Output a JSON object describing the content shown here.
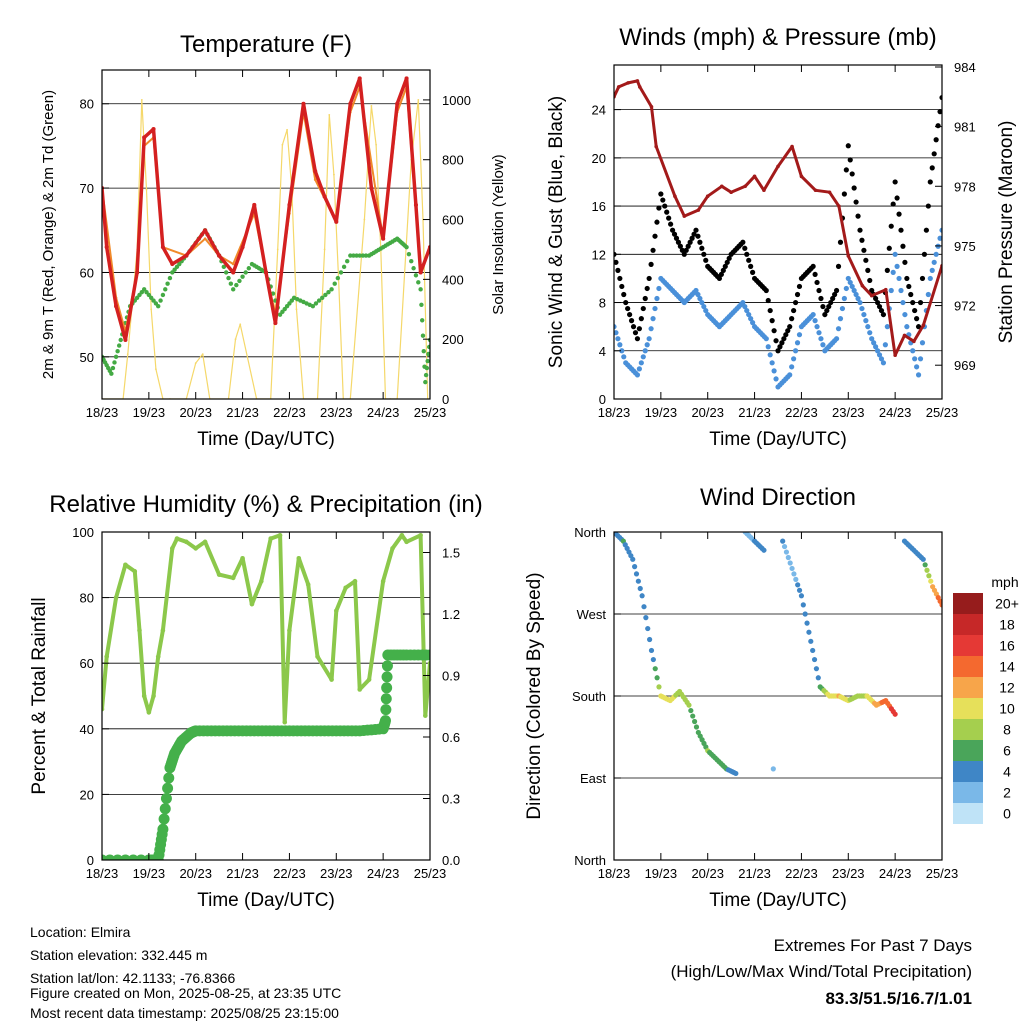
{
  "colors": {
    "temp_2m": "#d42020",
    "temp_9m": "#f08a2a",
    "dewpoint": "#44aa44",
    "solar": "#f5d86a",
    "wind": "#4a90d9",
    "gust": "#000000",
    "pressure": "#a31a1a",
    "rh": "#8cc84b",
    "precip": "#44b04a",
    "extremes": "#c62828"
  },
  "chart_data": [
    {
      "type": "line",
      "title": "Temperature (F)",
      "xlabel": "Time (Day/UTC)",
      "ylabel_left": "2m & 9m T (Red, Orange) & 2m Td (Green)",
      "ylabel_right": "Solar Insolation (Yellow)",
      "x_ticks": [
        "18/23",
        "19/23",
        "20/23",
        "21/23",
        "22/23",
        "23/23",
        "24/23",
        "25/23"
      ],
      "ylim_left": [
        45,
        84
      ],
      "yticks_left": [
        50,
        60,
        70,
        80
      ],
      "ylim_right": [
        0,
        1100
      ],
      "yticks_right": [
        0,
        200,
        400,
        600,
        800,
        1000
      ],
      "grid": true,
      "series": [
        {
          "name": "2m T",
          "axis": "left",
          "x": [
            0,
            0.1,
            0.3,
            0.5,
            0.75,
            0.9,
            1.1,
            1.3,
            1.5,
            1.8,
            2.2,
            2.5,
            2.8,
            3.0,
            3.25,
            3.5,
            3.7,
            4.0,
            4.3,
            4.55,
            4.75,
            5.0,
            5.3,
            5.5,
            5.75,
            6.0,
            6.3,
            6.5,
            6.7,
            6.8,
            7.0
          ],
          "values": [
            70,
            63,
            56,
            52,
            60,
            76,
            77,
            63,
            61,
            62,
            65,
            62,
            60,
            63,
            68,
            60,
            54,
            68,
            80,
            72,
            69,
            66,
            80,
            83,
            70,
            64,
            80,
            83,
            68,
            60,
            63
          ]
        },
        {
          "name": "9m T",
          "axis": "left",
          "x": [
            0,
            0.3,
            0.5,
            0.75,
            0.9,
            1.1,
            1.3,
            1.8,
            2.2,
            2.5,
            2.8,
            3.25,
            3.5,
            3.7,
            4.0,
            4.3,
            4.55,
            5.0,
            5.3,
            5.5,
            6.0,
            6.3,
            6.5,
            6.8,
            7.0
          ],
          "values": [
            70,
            57,
            53,
            60,
            75,
            76,
            63,
            62,
            64,
            62,
            61,
            67,
            60,
            55,
            67,
            79,
            71,
            66,
            79,
            82,
            64,
            79,
            82,
            60,
            63
          ]
        },
        {
          "name": "2m Td",
          "axis": "left",
          "x": [
            0,
            0.2,
            0.4,
            0.6,
            0.9,
            1.2,
            1.5,
            1.8,
            2.2,
            2.5,
            2.8,
            3.2,
            3.5,
            3.8,
            4.1,
            4.5,
            4.9,
            5.3,
            5.7,
            6.0,
            6.3,
            6.5,
            6.8,
            6.9,
            7.0
          ],
          "values": [
            50,
            48,
            52,
            56,
            58,
            56,
            60,
            62,
            65,
            62,
            58,
            61,
            60,
            55,
            57,
            56,
            58,
            62,
            62,
            63,
            64,
            63,
            58,
            47,
            52
          ]
        },
        {
          "name": "Solar Insolation",
          "axis": "right",
          "x": [
            0,
            0.45,
            0.55,
            0.75,
            0.85,
            0.95,
            1.05,
            1.15,
            1.3,
            1.45,
            1.8,
            2.0,
            2.15,
            2.3,
            2.7,
            2.85,
            2.95,
            3.3,
            3.6,
            3.75,
            3.85,
            3.95,
            4.05,
            4.15,
            4.3,
            4.6,
            4.75,
            4.85,
            4.95,
            5.05,
            5.15,
            5.3,
            5.6,
            5.75,
            5.85,
            5.95,
            6.05,
            6.15,
            6.3,
            6.6,
            6.75,
            6.85,
            6.95,
            7.0
          ],
          "values": [
            0,
            0,
            150,
            500,
            1000,
            700,
            300,
            100,
            0,
            0,
            0,
            120,
            150,
            0,
            0,
            200,
            250,
            0,
            0,
            500,
            850,
            900,
            700,
            300,
            0,
            0,
            500,
            950,
            750,
            400,
            0,
            0,
            600,
            980,
            850,
            500,
            0,
            0,
            0,
            800,
            1000,
            600,
            0,
            0
          ]
        }
      ]
    },
    {
      "type": "scatter",
      "title": "Winds (mph) & Pressure (mb)",
      "xlabel": "Time (Day/UTC)",
      "ylabel_left": "Sonic Wind & Gust (Blue, Black)",
      "ylabel_right": "Station Pressure (Maroon)",
      "x_ticks": [
        "18/23",
        "19/23",
        "20/23",
        "21/23",
        "22/23",
        "23/23",
        "24/23",
        "25/23"
      ],
      "ylim_left": [
        0,
        27.7
      ],
      "yticks_left": [
        0,
        4,
        8,
        12,
        16,
        20,
        24
      ],
      "ylim_right": [
        967.3,
        984.1
      ],
      "yticks_right": [
        969,
        972,
        975,
        978,
        981,
        984
      ],
      "grid": true,
      "series": [
        {
          "name": "Wind",
          "axis": "left",
          "x": [
            0,
            0.25,
            0.5,
            0.75,
            1.0,
            1.25,
            1.5,
            1.75,
            2.0,
            2.25,
            2.5,
            2.75,
            3.0,
            3.25,
            3.5,
            3.75,
            4.0,
            4.25,
            4.5,
            4.75,
            5.0,
            5.25,
            5.5,
            5.75,
            6.0,
            6.25,
            6.5,
            6.75,
            7.0
          ],
          "values": [
            6,
            3,
            2,
            5,
            10,
            9,
            8,
            9,
            7,
            6,
            7,
            8,
            6,
            5,
            1,
            2,
            6,
            7,
            4,
            5,
            10,
            8,
            5,
            3,
            12,
            6,
            2,
            10,
            14
          ]
        },
        {
          "name": "Gust",
          "axis": "left",
          "x": [
            0,
            0.25,
            0.5,
            0.75,
            1.0,
            1.25,
            1.5,
            1.75,
            2.0,
            2.25,
            2.5,
            2.75,
            3.0,
            3.25,
            3.5,
            3.75,
            4.0,
            4.25,
            4.5,
            4.75,
            5.0,
            5.25,
            5.5,
            5.75,
            6.0,
            6.25,
            6.5,
            6.75,
            7.0
          ],
          "values": [
            12,
            8,
            5,
            10,
            17,
            14,
            12,
            14,
            11,
            10,
            12,
            13,
            10,
            9,
            4,
            6,
            10,
            11,
            7,
            9,
            21,
            14,
            9,
            7,
            18,
            10,
            6,
            18,
            25
          ]
        },
        {
          "name": "Pressure",
          "axis": "right",
          "x": [
            0,
            0.1,
            0.3,
            0.5,
            0.55,
            0.8,
            0.9,
            1.3,
            1.5,
            1.8,
            2.0,
            2.3,
            2.5,
            2.8,
            3.0,
            3.2,
            3.5,
            3.8,
            4.0,
            4.3,
            4.6,
            4.8,
            5.0,
            5.3,
            5.5,
            5.8,
            6.0,
            6.2,
            6.4,
            6.6,
            7.0
          ],
          "values": [
            982.5,
            983,
            983.2,
            983.3,
            983,
            982,
            980,
            977.5,
            976.5,
            976.8,
            977.5,
            978,
            977.7,
            978,
            978.5,
            977.8,
            979,
            980,
            978.5,
            977.8,
            977.7,
            977,
            974.5,
            973,
            972.5,
            972.8,
            969.5,
            970.5,
            970.2,
            971,
            974
          ]
        }
      ]
    },
    {
      "type": "line",
      "title": "Relative Humidity (%) & Precipitation (in)",
      "xlabel": "Time (Day/UTC)",
      "ylabel_left": "Percent & Total Rainfall",
      "x_ticks": [
        "18/23",
        "19/23",
        "20/23",
        "21/23",
        "22/23",
        "23/23",
        "24/23",
        "25/23"
      ],
      "ylim_left": [
        0,
        100
      ],
      "yticks_left": [
        0,
        20,
        40,
        60,
        80,
        100
      ],
      "ylim_right": [
        0,
        1.6
      ],
      "yticks_right": [
        "0.0",
        "0.3",
        "0.6",
        "0.9",
        "1.2",
        "1.5"
      ],
      "grid": true,
      "series": [
        {
          "name": "Relative Humidity",
          "axis": "left",
          "x": [
            0,
            0.1,
            0.3,
            0.5,
            0.7,
            0.8,
            0.9,
            1.0,
            1.1,
            1.2,
            1.3,
            1.5,
            1.6,
            1.8,
            2.0,
            2.2,
            2.5,
            2.8,
            3.0,
            3.2,
            3.4,
            3.6,
            3.8,
            3.9,
            4.0,
            4.2,
            4.4,
            4.6,
            4.9,
            5.0,
            5.2,
            5.4,
            5.5,
            5.7,
            6.0,
            6.2,
            6.4,
            6.5,
            6.8,
            6.9,
            7.0
          ],
          "values": [
            46,
            62,
            80,
            90,
            88,
            70,
            50,
            45,
            50,
            62,
            70,
            95,
            98,
            97,
            95,
            97,
            87,
            86,
            92,
            78,
            85,
            98,
            99,
            42,
            70,
            92,
            84,
            62,
            55,
            76,
            83,
            85,
            52,
            55,
            85,
            95,
            99,
            97,
            99,
            44,
            60
          ]
        },
        {
          "name": "Total Rainfall",
          "axis": "right",
          "x": [
            0,
            1.0,
            1.2,
            1.3,
            1.45,
            1.55,
            1.7,
            1.9,
            2.0,
            2.5,
            3.0,
            3.5,
            4.0,
            4.5,
            5.0,
            5.5,
            6.0,
            6.05,
            6.1,
            6.5,
            7.0
          ],
          "values": [
            0,
            0,
            0,
            0.15,
            0.45,
            0.52,
            0.58,
            0.62,
            0.63,
            0.63,
            0.63,
            0.63,
            0.63,
            0.63,
            0.63,
            0.63,
            0.64,
            0.68,
            1.0,
            1.0,
            1.0
          ]
        }
      ]
    },
    {
      "type": "scatter",
      "title": "Wind Direction",
      "xlabel": "Time (Day/UTC)",
      "ylabel_left": "Direction (Colored By Speed)",
      "x_ticks": [
        "18/23",
        "19/23",
        "20/23",
        "21/23",
        "22/23",
        "23/23",
        "24/23",
        "25/23"
      ],
      "ylim_left": [
        0,
        360
      ],
      "yticks_left": [
        {
          "value": 0,
          "label": "North"
        },
        {
          "value": 90,
          "label": "East"
        },
        {
          "value": 180,
          "label": "South"
        },
        {
          "value": 270,
          "label": "West"
        },
        {
          "value": 360,
          "label": "North"
        }
      ],
      "grid": true,
      "colorbar": {
        "title": "mph",
        "labels": [
          "20+",
          "18",
          "16",
          "14",
          "12",
          "10",
          "8",
          "6",
          "4",
          "2",
          "0"
        ],
        "colors": [
          "#961c1c",
          "#c62828",
          "#e53935",
          "#f4692f",
          "#f7a54a",
          "#e6e05a",
          "#a5cf4e",
          "#4aa55a",
          "#3f86c6",
          "#7ab8e8",
          "#bfe3f7"
        ]
      },
      "series": [
        {
          "name": "Direction",
          "axis": "left",
          "x": [
            0,
            0.2,
            0.4,
            0.6,
            0.8,
            1.0,
            1.2,
            1.4,
            1.6,
            1.8,
            2.0,
            2.2,
            2.4,
            2.6,
            2.8,
            3.0,
            3.2,
            3.4,
            3.6,
            3.8,
            4.0,
            4.2,
            4.4,
            4.6,
            4.8,
            5.0,
            5.2,
            5.4,
            5.6,
            5.8,
            6.0,
            6.2,
            6.4,
            6.6,
            6.8,
            7.0
          ],
          "values": [
            360,
            350,
            330,
            290,
            230,
            180,
            175,
            185,
            170,
            140,
            120,
            110,
            100,
            95,
            360,
            350,
            340,
            100,
            350,
            320,
            290,
            240,
            190,
            180,
            180,
            175,
            180,
            180,
            170,
            175,
            160,
            350,
            340,
            330,
            300,
            280
          ],
          "speeds": [
            4,
            5,
            4,
            3,
            3,
            9,
            10,
            8,
            7,
            6,
            7,
            5,
            5,
            3,
            2,
            3,
            3,
            2,
            3,
            2,
            4,
            4,
            5,
            10,
            11,
            9,
            8,
            9,
            12,
            14,
            16,
            4,
            4,
            4,
            12,
            14
          ]
        }
      ]
    }
  ],
  "footer": {
    "location": "Location: Elmira",
    "elevation": "Station elevation: 332.445 m",
    "latlon": "Station lat/lon: 42.1133; -76.8366",
    "created": "Figure created on Mon, 2025-08-25, at 23:35 UTC",
    "recent": "Most recent data timestamp: 2025/08/25 23:15:00"
  },
  "extremes": {
    "title": "Extremes For Past 7 Days",
    "subtitle": "(High/Low/Max Wind/Total Precipitation)",
    "values": "83.3/51.5/16.7/1.01"
  }
}
